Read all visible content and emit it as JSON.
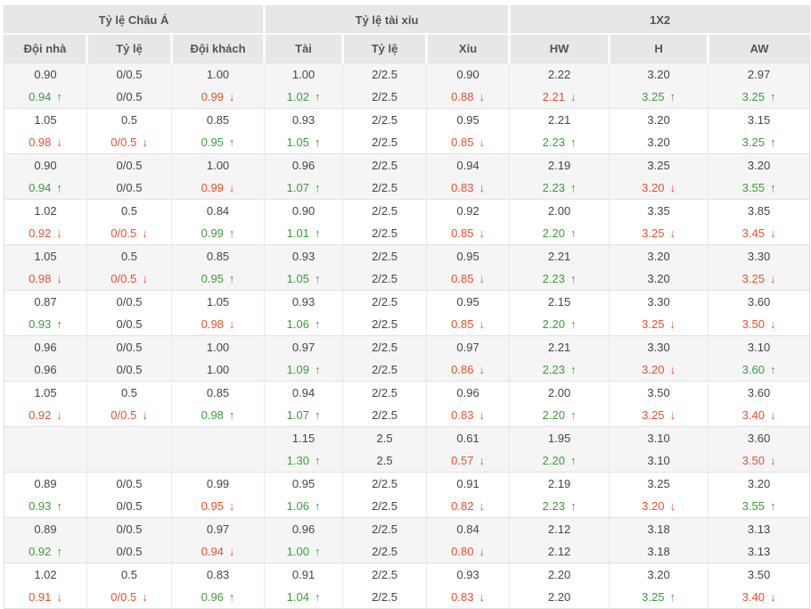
{
  "colors": {
    "header_bg": "#e7e7e7",
    "stripe_bg": "#f5f5f5",
    "grid": "#e2e2e2",
    "up_green": "#3c9c3c",
    "down_red": "#e8512d"
  },
  "icons": {
    "up": "↑",
    "down": "↓",
    "up_name": "up-arrow-icon",
    "down_name": "down-arrow-icon"
  },
  "table": {
    "group_headers": [
      {
        "label": "Tỷ lệ Châu Á"
      },
      {
        "label": "Tỷ lệ tài xỉu"
      },
      {
        "label": "1X2"
      }
    ],
    "columns": [
      "Đội nhà",
      "Tỷ lệ",
      "Đội khách",
      "Tài",
      "Tỷ lệ",
      "Xỉu",
      "HW",
      "H",
      "AW"
    ],
    "rows": [
      {
        "top": [
          {
            "v": "0.90"
          },
          {
            "v": "0/0.5"
          },
          {
            "v": "1.00"
          },
          {
            "v": "1.00"
          },
          {
            "v": "2/2.5"
          },
          {
            "v": "0.90"
          },
          {
            "v": "2.22"
          },
          {
            "v": "3.20"
          },
          {
            "v": "2.97"
          }
        ],
        "bottom": [
          {
            "v": "0.94",
            "t": "up"
          },
          {
            "v": "0/0.5"
          },
          {
            "v": "0.99",
            "t": "down"
          },
          {
            "v": "1.02",
            "t": "up"
          },
          {
            "v": "2/2.5"
          },
          {
            "v": "0.88",
            "t": "down"
          },
          {
            "v": "2.21",
            "t": "down"
          },
          {
            "v": "3.25",
            "t": "up"
          },
          {
            "v": "3.25",
            "t": "up"
          }
        ]
      },
      {
        "top": [
          {
            "v": "1.05"
          },
          {
            "v": "0.5"
          },
          {
            "v": "0.85"
          },
          {
            "v": "0.93"
          },
          {
            "v": "2/2.5"
          },
          {
            "v": "0.95"
          },
          {
            "v": "2.21"
          },
          {
            "v": "3.20"
          },
          {
            "v": "3.15"
          }
        ],
        "bottom": [
          {
            "v": "0.98",
            "t": "down"
          },
          {
            "v": "0/0.5",
            "t": "down"
          },
          {
            "v": "0.95",
            "t": "up"
          },
          {
            "v": "1.05",
            "t": "up"
          },
          {
            "v": "2/2.5"
          },
          {
            "v": "0.85",
            "t": "down"
          },
          {
            "v": "2.23",
            "t": "up"
          },
          {
            "v": "3.20"
          },
          {
            "v": "3.25",
            "t": "up"
          }
        ]
      },
      {
        "top": [
          {
            "v": "0.90"
          },
          {
            "v": "0/0.5"
          },
          {
            "v": "1.00"
          },
          {
            "v": "0.96"
          },
          {
            "v": "2/2.5"
          },
          {
            "v": "0.94"
          },
          {
            "v": "2.19"
          },
          {
            "v": "3.25"
          },
          {
            "v": "3.20"
          }
        ],
        "bottom": [
          {
            "v": "0.94",
            "t": "up"
          },
          {
            "v": "0/0.5"
          },
          {
            "v": "0.99",
            "t": "down"
          },
          {
            "v": "1.07",
            "t": "up"
          },
          {
            "v": "2/2.5"
          },
          {
            "v": "0.83",
            "t": "down"
          },
          {
            "v": "2.23",
            "t": "up"
          },
          {
            "v": "3.20",
            "t": "down"
          },
          {
            "v": "3.55",
            "t": "up"
          }
        ]
      },
      {
        "top": [
          {
            "v": "1.02"
          },
          {
            "v": "0.5"
          },
          {
            "v": "0.84"
          },
          {
            "v": "0.90"
          },
          {
            "v": "2/2.5"
          },
          {
            "v": "0.92"
          },
          {
            "v": "2.00"
          },
          {
            "v": "3.35"
          },
          {
            "v": "3.85"
          }
        ],
        "bottom": [
          {
            "v": "0.92",
            "t": "down"
          },
          {
            "v": "0/0.5",
            "t": "down"
          },
          {
            "v": "0.99",
            "t": "up"
          },
          {
            "v": "1.01",
            "t": "up"
          },
          {
            "v": "2/2.5"
          },
          {
            "v": "0.85",
            "t": "down"
          },
          {
            "v": "2.20",
            "t": "up"
          },
          {
            "v": "3.25",
            "t": "down"
          },
          {
            "v": "3.45",
            "t": "down"
          }
        ]
      },
      {
        "top": [
          {
            "v": "1.05"
          },
          {
            "v": "0.5"
          },
          {
            "v": "0.85"
          },
          {
            "v": "0.93"
          },
          {
            "v": "2/2.5"
          },
          {
            "v": "0.95"
          },
          {
            "v": "2.21"
          },
          {
            "v": "3.20"
          },
          {
            "v": "3.30"
          }
        ],
        "bottom": [
          {
            "v": "0.98",
            "t": "down"
          },
          {
            "v": "0/0.5",
            "t": "down"
          },
          {
            "v": "0.95",
            "t": "up"
          },
          {
            "v": "1.05",
            "t": "up"
          },
          {
            "v": "2/2.5"
          },
          {
            "v": "0.85",
            "t": "down"
          },
          {
            "v": "2.23",
            "t": "up"
          },
          {
            "v": "3.20"
          },
          {
            "v": "3.25",
            "t": "down"
          }
        ]
      },
      {
        "top": [
          {
            "v": "0.87"
          },
          {
            "v": "0/0.5"
          },
          {
            "v": "1.05"
          },
          {
            "v": "0.93"
          },
          {
            "v": "2/2.5"
          },
          {
            "v": "0.95"
          },
          {
            "v": "2.15"
          },
          {
            "v": "3.30"
          },
          {
            "v": "3.60"
          }
        ],
        "bottom": [
          {
            "v": "0.93",
            "t": "up"
          },
          {
            "v": "0/0.5"
          },
          {
            "v": "0.98",
            "t": "down"
          },
          {
            "v": "1.06",
            "t": "up"
          },
          {
            "v": "2/2.5"
          },
          {
            "v": "0.85",
            "t": "down"
          },
          {
            "v": "2.20",
            "t": "up"
          },
          {
            "v": "3.25",
            "t": "down"
          },
          {
            "v": "3.50",
            "t": "down"
          }
        ]
      },
      {
        "top": [
          {
            "v": "0.96"
          },
          {
            "v": "0/0.5"
          },
          {
            "v": "1.00"
          },
          {
            "v": "0.97"
          },
          {
            "v": "2/2.5"
          },
          {
            "v": "0.97"
          },
          {
            "v": "2.21"
          },
          {
            "v": "3.30"
          },
          {
            "v": "3.10"
          }
        ],
        "bottom": [
          {
            "v": "0.96"
          },
          {
            "v": "0/0.5"
          },
          {
            "v": "1.00"
          },
          {
            "v": "1.09",
            "t": "up"
          },
          {
            "v": "2/2.5"
          },
          {
            "v": "0.86",
            "t": "down"
          },
          {
            "v": "2.23",
            "t": "up"
          },
          {
            "v": "3.20",
            "t": "down"
          },
          {
            "v": "3.60",
            "t": "up"
          }
        ]
      },
      {
        "top": [
          {
            "v": "1.05"
          },
          {
            "v": "0.5"
          },
          {
            "v": "0.85"
          },
          {
            "v": "0.94"
          },
          {
            "v": "2/2.5"
          },
          {
            "v": "0.96"
          },
          {
            "v": "2.00"
          },
          {
            "v": "3.50"
          },
          {
            "v": "3.60"
          }
        ],
        "bottom": [
          {
            "v": "0.92",
            "t": "down"
          },
          {
            "v": "0/0.5",
            "t": "down"
          },
          {
            "v": "0.98",
            "t": "up"
          },
          {
            "v": "1.07",
            "t": "up"
          },
          {
            "v": "2/2.5"
          },
          {
            "v": "0.83",
            "t": "down"
          },
          {
            "v": "2.20",
            "t": "up"
          },
          {
            "v": "3.25",
            "t": "down"
          },
          {
            "v": "3.40",
            "t": "down"
          }
        ]
      },
      {
        "top": [
          {
            "v": ""
          },
          {
            "v": ""
          },
          {
            "v": ""
          },
          {
            "v": "1.15"
          },
          {
            "v": "2.5"
          },
          {
            "v": "0.61"
          },
          {
            "v": "1.95"
          },
          {
            "v": "3.10"
          },
          {
            "v": "3.60"
          }
        ],
        "bottom": [
          {
            "v": ""
          },
          {
            "v": ""
          },
          {
            "v": ""
          },
          {
            "v": "1.30",
            "t": "up"
          },
          {
            "v": "2.5"
          },
          {
            "v": "0.57",
            "t": "down"
          },
          {
            "v": "2.20",
            "t": "up"
          },
          {
            "v": "3.10"
          },
          {
            "v": "3.50",
            "t": "down"
          }
        ]
      },
      {
        "top": [
          {
            "v": "0.89"
          },
          {
            "v": "0/0.5"
          },
          {
            "v": "0.99"
          },
          {
            "v": "0.95"
          },
          {
            "v": "2/2.5"
          },
          {
            "v": "0.91"
          },
          {
            "v": "2.19"
          },
          {
            "v": "3.25"
          },
          {
            "v": "3.20"
          }
        ],
        "bottom": [
          {
            "v": "0.93",
            "t": "up"
          },
          {
            "v": "0/0.5"
          },
          {
            "v": "0.95",
            "t": "down"
          },
          {
            "v": "1.06",
            "t": "up"
          },
          {
            "v": "2/2.5"
          },
          {
            "v": "0.82",
            "t": "down"
          },
          {
            "v": "2.23",
            "t": "up"
          },
          {
            "v": "3.20",
            "t": "down"
          },
          {
            "v": "3.55",
            "t": "up"
          }
        ]
      },
      {
        "top": [
          {
            "v": "0.89"
          },
          {
            "v": "0/0.5"
          },
          {
            "v": "0.97"
          },
          {
            "v": "0.96"
          },
          {
            "v": "2/2.5"
          },
          {
            "v": "0.84"
          },
          {
            "v": "2.12"
          },
          {
            "v": "3.18"
          },
          {
            "v": "3.13"
          }
        ],
        "bottom": [
          {
            "v": "0.92",
            "t": "up"
          },
          {
            "v": "0/0.5"
          },
          {
            "v": "0.94",
            "t": "down"
          },
          {
            "v": "1.00",
            "t": "up"
          },
          {
            "v": "2/2.5"
          },
          {
            "v": "0.80",
            "t": "down"
          },
          {
            "v": "2.12"
          },
          {
            "v": "3.18"
          },
          {
            "v": "3.13"
          }
        ]
      },
      {
        "top": [
          {
            "v": "1.02"
          },
          {
            "v": "0.5"
          },
          {
            "v": "0.83"
          },
          {
            "v": "0.91"
          },
          {
            "v": "2/2.5"
          },
          {
            "v": "0.93"
          },
          {
            "v": "2.20"
          },
          {
            "v": "3.20"
          },
          {
            "v": "3.50"
          }
        ],
        "bottom": [
          {
            "v": "0.91",
            "t": "down"
          },
          {
            "v": "0/0.5",
            "t": "down"
          },
          {
            "v": "0.96",
            "t": "up"
          },
          {
            "v": "1.04",
            "t": "up"
          },
          {
            "v": "2/2.5"
          },
          {
            "v": "0.83",
            "t": "down"
          },
          {
            "v": "2.20"
          },
          {
            "v": "3.25",
            "t": "up"
          },
          {
            "v": "3.40",
            "t": "down"
          }
        ]
      }
    ]
  }
}
